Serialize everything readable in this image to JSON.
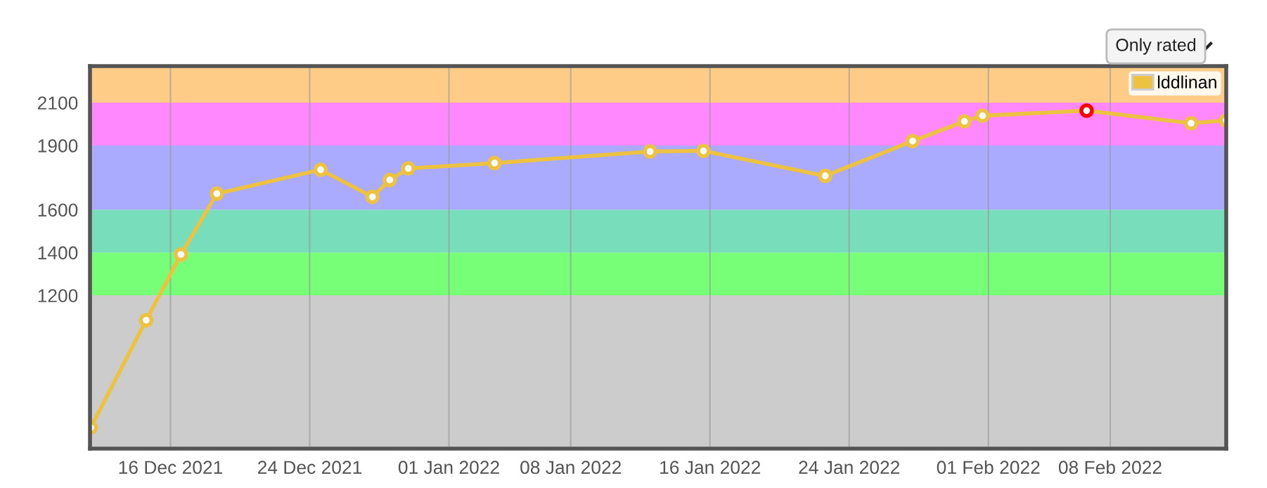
{
  "chart_data": {
    "type": "line",
    "x": [
      "2021-12-11T10:00",
      "2021-12-14T14:30",
      "2021-12-16T14:30",
      "2021-12-18T16:00",
      "2021-12-24T15:00",
      "2021-12-27T14:30",
      "2021-12-28T14:30",
      "2021-12-29T16:00",
      "2022-01-03T15:00",
      "2022-01-12T13:30",
      "2022-01-15T15:00",
      "2022-01-22T15:00",
      "2022-01-27T15:30",
      "2022-01-30T15:00",
      "2022-01-31T16:00",
      "2022-02-06T15:30",
      "2022-02-12T15:30",
      "2022-02-14T16:00"
    ],
    "series": [
      {
        "name": "lddlinan",
        "color": "#edc240",
        "colors": [
          "#edc240",
          "#edc240",
          "#edc240",
          "#edc240",
          "#edc240",
          "#edc240",
          "#edc240",
          "#edc240",
          "#edc240",
          "#edc240",
          "#edc240",
          "#edc240",
          "#edc240",
          "#edc240",
          "#edc240",
          "#ff0000",
          "#edc240",
          "#edc240"
        ],
        "values": [
          582,
          1084,
          1391,
          1675,
          1787,
          1660,
          1739,
          1793,
          1818,
          1872,
          1875,
          1758,
          1921,
          2013,
          2039,
          2063,
          2004,
          2017
        ]
      }
    ],
    "xlim": [
      "2021-12-11T09:00",
      "2022-02-14T16:00"
    ],
    "xticks": [
      {
        "value": "2021-12-16",
        "label": "16 Dec 2021"
      },
      {
        "value": "2021-12-24",
        "label": "24 Dec 2021"
      },
      {
        "value": "2022-01-01",
        "label": "01 Jan 2022"
      },
      {
        "value": "2022-01-08",
        "label": "08 Jan 2022"
      },
      {
        "value": "2022-01-16",
        "label": "16 Jan 2022"
      },
      {
        "value": "2022-01-24",
        "label": "24 Jan 2022"
      },
      {
        "value": "2022-02-01",
        "label": "01 Feb 2022"
      },
      {
        "value": "2022-02-08",
        "label": "08 Feb 2022"
      }
    ],
    "ylim": [
      484,
      2271
    ],
    "yticks": [
      1200,
      1400,
      1600,
      1900,
      2100
    ],
    "bands": [
      {
        "axis": "y",
        "from": 484,
        "to": 1200,
        "color": "#cccccc"
      },
      {
        "axis": "y",
        "from": 1200,
        "to": 1400,
        "color": "#77ff77"
      },
      {
        "axis": "y",
        "from": 1400,
        "to": 1600,
        "color": "#77ddbb"
      },
      {
        "axis": "y",
        "from": 1600,
        "to": 1900,
        "color": "#aaaaff"
      },
      {
        "axis": "y",
        "from": 1900,
        "to": 2100,
        "color": "#ff88ff"
      },
      {
        "axis": "y",
        "from": 2100,
        "to": 2271,
        "color": "#ffcc88"
      }
    ],
    "annotations": [
      "Only rated"
    ],
    "grid": "x",
    "legend": "top right",
    "marker": "circle",
    "line_style": "solid"
  }
}
